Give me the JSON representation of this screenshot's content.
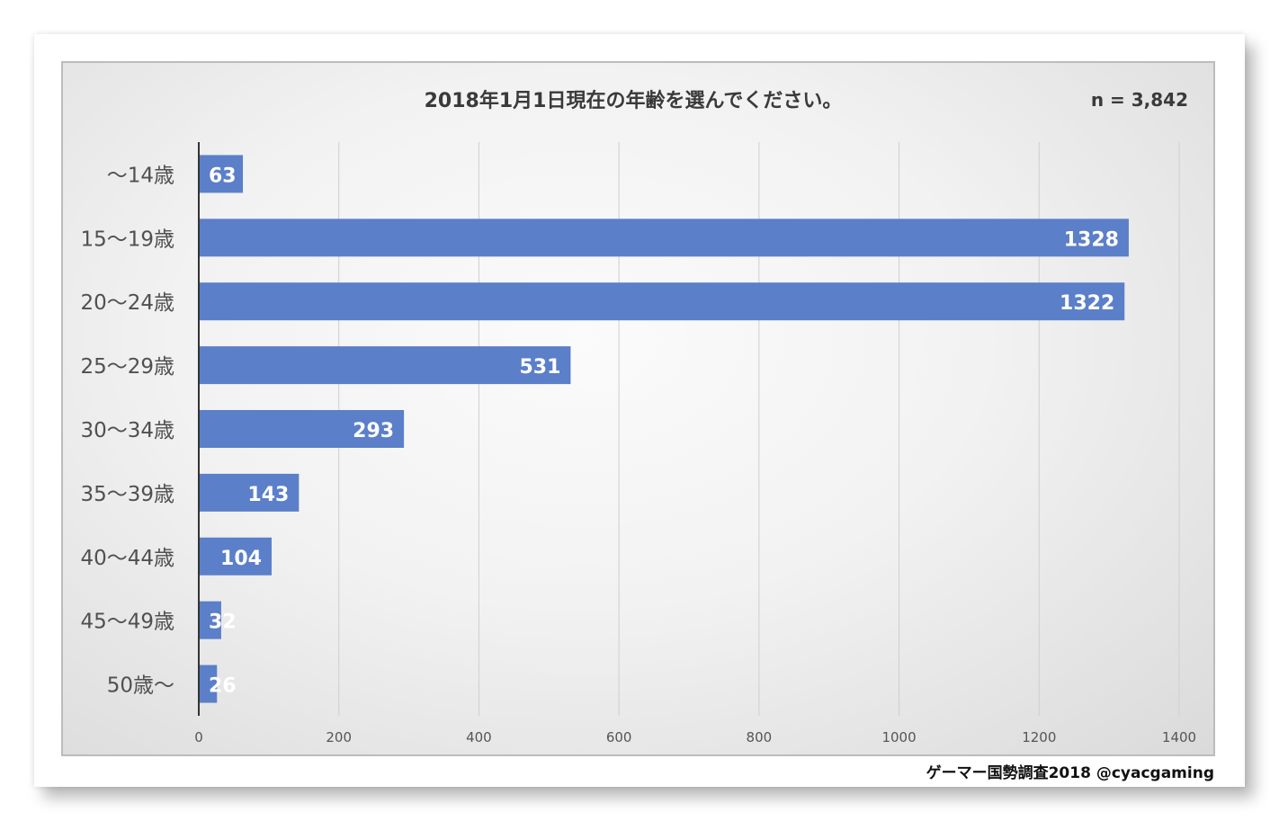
{
  "chart_data": {
    "type": "bar",
    "orientation": "horizontal",
    "title": "2018年1月1日現在の年齢を選んでください。",
    "note": "n = 3,842",
    "categories": [
      "〜14歳",
      "15〜19歳",
      "20〜24歳",
      "25〜29歳",
      "30〜34歳",
      "35〜39歳",
      "40〜44歳",
      "45〜49歳",
      "50歳〜"
    ],
    "values": [
      63,
      1328,
      1322,
      531,
      293,
      143,
      104,
      32,
      26
    ],
    "xlim": [
      0,
      1400
    ],
    "xticks": [
      0,
      200,
      400,
      600,
      800,
      1000,
      1200,
      1400
    ],
    "grid": "vertical",
    "bar_color": "#5b7fc8",
    "label_color": "#ffffff"
  },
  "credit": "ゲーマー国勢調査2018 @cyacgaming"
}
